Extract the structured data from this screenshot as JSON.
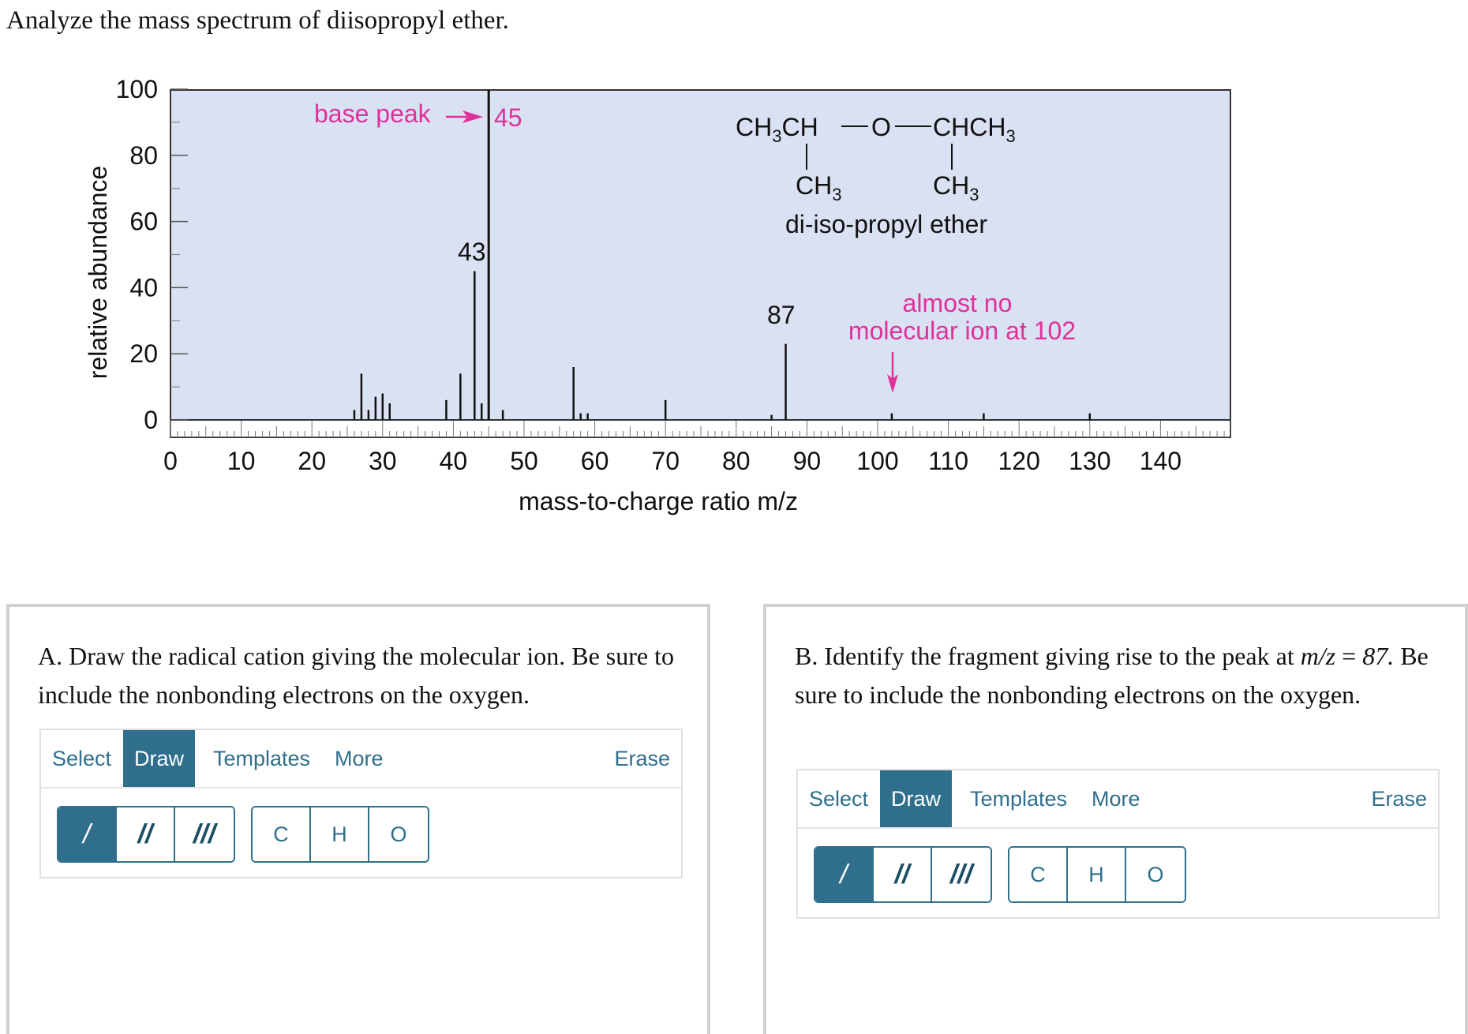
{
  "question": "Analyze the mass spectrum of diisopropyl ether.",
  "chart_data": {
    "type": "bar",
    "xlabel": "mass-to-charge ratio m/z",
    "ylabel": "relative abundance",
    "xlim": [
      0,
      150
    ],
    "ylim": [
      0,
      100
    ],
    "x_ticks": [
      0,
      10,
      20,
      30,
      40,
      50,
      60,
      70,
      80,
      90,
      100,
      110,
      120,
      130,
      140
    ],
    "y_ticks": [
      0,
      20,
      40,
      60,
      80,
      100
    ],
    "grid": false,
    "plot_background": "#d9e1f2",
    "peaks": [
      {
        "mz": 26,
        "abundance": 3
      },
      {
        "mz": 27,
        "abundance": 14
      },
      {
        "mz": 28,
        "abundance": 3
      },
      {
        "mz": 29,
        "abundance": 7
      },
      {
        "mz": 30,
        "abundance": 8
      },
      {
        "mz": 31,
        "abundance": 5
      },
      {
        "mz": 39,
        "abundance": 6
      },
      {
        "mz": 41,
        "abundance": 14
      },
      {
        "mz": 43,
        "abundance": 45
      },
      {
        "mz": 44,
        "abundance": 5
      },
      {
        "mz": 45,
        "abundance": 100
      },
      {
        "mz": 47,
        "abundance": 3
      },
      {
        "mz": 57,
        "abundance": 16
      },
      {
        "mz": 58,
        "abundance": 2
      },
      {
        "mz": 59,
        "abundance": 2
      },
      {
        "mz": 70,
        "abundance": 6
      },
      {
        "mz": 85,
        "abundance": 1.5
      },
      {
        "mz": 87,
        "abundance": 23
      },
      {
        "mz": 102,
        "abundance": 2
      },
      {
        "mz": 115,
        "abundance": 2
      },
      {
        "mz": 130,
        "abundance": 2
      }
    ],
    "peak_labels": [
      {
        "mz": 43,
        "text": "43"
      },
      {
        "mz": 45,
        "text": "45"
      },
      {
        "mz": 87,
        "text": "87"
      }
    ],
    "annotations": {
      "base_peak": "base peak",
      "no_molecular_ion_line1": "almost no",
      "no_molecular_ion_line2": "molecular ion at 102",
      "compound_name": "di-iso-propyl ether",
      "annotation_color": "#e0309a"
    },
    "structure": {
      "left": "CH",
      "left_sub": "3",
      "left_tail": "CH",
      "oxygen": "O",
      "right": "CHCH",
      "right_sub": "3",
      "branch": "CH",
      "branch_sub": "3"
    }
  },
  "panel_a": {
    "prompt": "A. Draw the radical cation giving the molecular ion. Be sure to include the nonbonding electrons on the oxygen.",
    "menu": {
      "select": "Select",
      "draw": "Draw",
      "templates": "Templates",
      "more": "More",
      "erase": "Erase"
    },
    "bonds": {
      "single": "/",
      "double": "//",
      "triple": "///"
    },
    "atoms": {
      "c": "C",
      "h": "H",
      "o": "O"
    }
  },
  "panel_b": {
    "prompt_pre": "B. Identify the fragment giving rise to the peak at ",
    "prompt_mz": "m/z",
    "prompt_eq": " = ",
    "prompt_val": "87.",
    "prompt_post": " Be sure to include the nonbonding electrons on the oxygen.",
    "menu": {
      "select": "Select",
      "draw": "Draw",
      "templates": "Templates",
      "more": "More",
      "erase": "Erase"
    },
    "bonds": {
      "single": "/",
      "double": "//",
      "triple": "///"
    },
    "atoms": {
      "c": "C",
      "h": "H",
      "o": "O"
    }
  },
  "colors": {
    "accent": "#2f6f8c",
    "panel_border": "#d0d0d0"
  }
}
